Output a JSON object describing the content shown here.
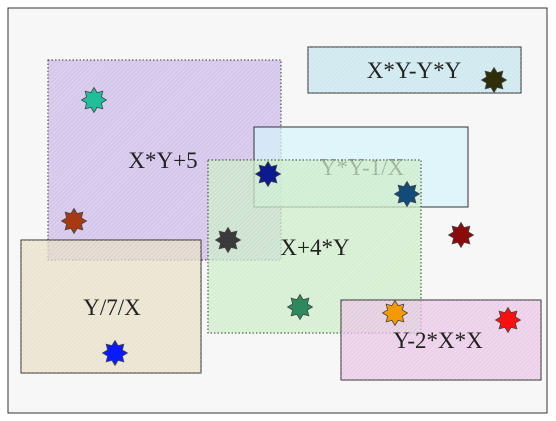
{
  "boxes": [
    {
      "id": "x-y-minus-y-y",
      "label": "X*Y-Y*Y",
      "color": "#bfe3ec",
      "hatch": true
    },
    {
      "id": "x-y-plus-5",
      "label": "X*Y+5",
      "color": "#c8b3e6",
      "hatch": true
    },
    {
      "id": "y-y-minus-1-x",
      "label": "Y*Y-1/X",
      "color": "#d6f4fb",
      "hatch": false
    },
    {
      "id": "x-plus-4-y",
      "label": "X+4*Y",
      "color": "#c9ecc3",
      "hatch": true
    },
    {
      "id": "y-div-7-div-x",
      "label": "Y/7/X",
      "color": "#e6dcc0",
      "hatch": true
    },
    {
      "id": "y-minus-2-x-x",
      "label": "Y-2*X*X",
      "color": "#e8c0e3",
      "hatch": true
    }
  ],
  "stars": [
    {
      "id": "star-teal",
      "color": "#1fbf99"
    },
    {
      "id": "star-navy",
      "color": "#0b1a8f"
    },
    {
      "id": "star-steelblue",
      "color": "#124a7a"
    },
    {
      "id": "star-rust",
      "color": "#a83a12"
    },
    {
      "id": "star-charcoal",
      "color": "#3a3a3a"
    },
    {
      "id": "star-darkred",
      "color": "#8b0a0a"
    },
    {
      "id": "star-olive",
      "color": "#2e2e08"
    },
    {
      "id": "star-green",
      "color": "#2e8a5e"
    },
    {
      "id": "star-orange",
      "color": "#f49a00"
    },
    {
      "id": "star-red",
      "color": "#ff1010"
    },
    {
      "id": "star-blue",
      "color": "#0a1aff"
    }
  ]
}
